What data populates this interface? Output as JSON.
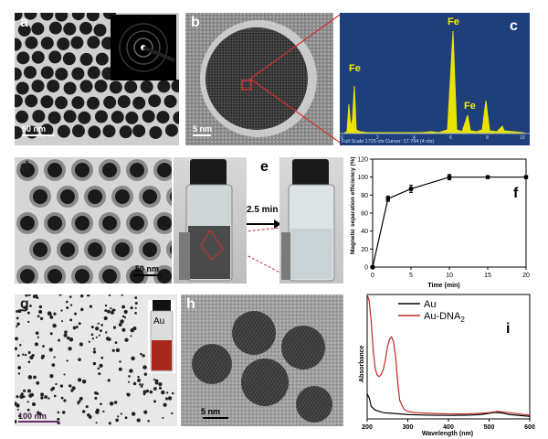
{
  "panels": {
    "a": {
      "label": "a",
      "scale": "50 nm"
    },
    "b": {
      "label": "b",
      "scale": "5 nm"
    },
    "c": {
      "label": "c",
      "peaks": [
        "Fe",
        "Fe",
        "Fe"
      ],
      "footer": "Full Scale 1725 cts Cursor: 17.794  (4 cts)",
      "ticks": [
        "0",
        "2",
        "4",
        "6",
        "8",
        "10"
      ]
    },
    "d": {
      "label": "d",
      "scale": "50 nm"
    },
    "e": {
      "label": "e",
      "arrow_text": "2.5 min"
    },
    "f": {
      "label": "f"
    },
    "g": {
      "label": "g",
      "scale": "100 nm",
      "vial_label": "Au"
    },
    "h": {
      "label": "h",
      "scale": "5 nm"
    },
    "i": {
      "label": "i"
    }
  },
  "chart_data": [
    {
      "panel": "f",
      "type": "line",
      "x": [
        0,
        2,
        5,
        10,
        15,
        20
      ],
      "series": [
        {
          "values": [
            0,
            76,
            87,
            100,
            100,
            100
          ],
          "error": [
            0,
            3,
            4,
            3,
            0,
            0
          ]
        }
      ],
      "xlabel": "Time (min)",
      "ylabel": "Magnetic separation efficiency (%)",
      "xlim": [
        0,
        20
      ],
      "ylim": [
        0,
        120
      ],
      "xticks": [
        "0",
        "5",
        "10",
        "15",
        "20"
      ],
      "yticks": [
        "0",
        "20",
        "40",
        "60",
        "80",
        "100",
        "120"
      ]
    },
    {
      "panel": "i",
      "type": "line",
      "xlabel": "Wavelength (nm)",
      "ylabel": "Absorbance",
      "xlim": [
        200,
        600
      ],
      "xticks": [
        "200",
        "300",
        "400",
        "500",
        "600"
      ],
      "legend": "top-right",
      "series": [
        {
          "name": "Au",
          "color": "#000000",
          "x": [
            200,
            205,
            210,
            220,
            240,
            260,
            300,
            350,
            400,
            450,
            480,
            500,
            510,
            520,
            530,
            550,
            600
          ],
          "y": [
            0.2,
            0.17,
            0.1,
            0.07,
            0.05,
            0.045,
            0.035,
            0.03,
            0.028,
            0.03,
            0.035,
            0.045,
            0.05,
            0.052,
            0.048,
            0.035,
            0.02
          ]
        },
        {
          "name": "Au-DNA",
          "subscript": "2",
          "color": "#c0282a",
          "x": [
            200,
            205,
            210,
            215,
            220,
            225,
            230,
            235,
            240,
            245,
            250,
            255,
            260,
            265,
            270,
            275,
            280,
            290,
            300,
            320,
            350,
            400,
            450,
            500,
            520,
            550,
            600
          ],
          "y": [
            1.0,
            0.95,
            0.78,
            0.55,
            0.4,
            0.35,
            0.34,
            0.36,
            0.4,
            0.48,
            0.58,
            0.64,
            0.66,
            0.62,
            0.5,
            0.3,
            0.15,
            0.08,
            0.06,
            0.05,
            0.045,
            0.04,
            0.04,
            0.05,
            0.06,
            0.05,
            0.03
          ]
        }
      ]
    }
  ]
}
